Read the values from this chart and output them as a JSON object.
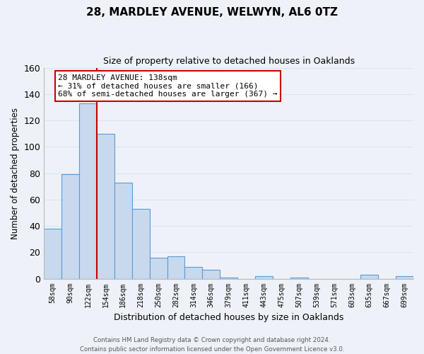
{
  "title": "28, MARDLEY AVENUE, WELWYN, AL6 0TZ",
  "subtitle": "Size of property relative to detached houses in Oaklands",
  "xlabel": "Distribution of detached houses by size in Oaklands",
  "ylabel": "Number of detached properties",
  "bar_labels": [
    "58sqm",
    "90sqm",
    "122sqm",
    "154sqm",
    "186sqm",
    "218sqm",
    "250sqm",
    "282sqm",
    "314sqm",
    "346sqm",
    "379sqm",
    "411sqm",
    "443sqm",
    "475sqm",
    "507sqm",
    "539sqm",
    "571sqm",
    "603sqm",
    "635sqm",
    "667sqm",
    "699sqm"
  ],
  "bar_values": [
    38,
    79,
    133,
    110,
    73,
    53,
    16,
    17,
    9,
    7,
    1,
    0,
    2,
    0,
    1,
    0,
    0,
    0,
    3,
    0,
    2
  ],
  "bar_color": "#c8d9ed",
  "bar_edge_color": "#5b9bd5",
  "ylim": [
    0,
    160
  ],
  "yticks": [
    0,
    20,
    40,
    60,
    80,
    100,
    120,
    140,
    160
  ],
  "property_line_color": "#cc0000",
  "annotation_title": "28 MARDLEY AVENUE: 138sqm",
  "annotation_line1": "← 31% of detached houses are smaller (166)",
  "annotation_line2": "68% of semi-detached houses are larger (367) →",
  "annotation_box_color": "#ffffff",
  "annotation_box_edge": "#cc0000",
  "footer_line1": "Contains HM Land Registry data © Crown copyright and database right 2024.",
  "footer_line2": "Contains public sector information licensed under the Open Government Licence v3.0.",
  "grid_color": "#d8e4f0",
  "background_color": "#eef2f8"
}
